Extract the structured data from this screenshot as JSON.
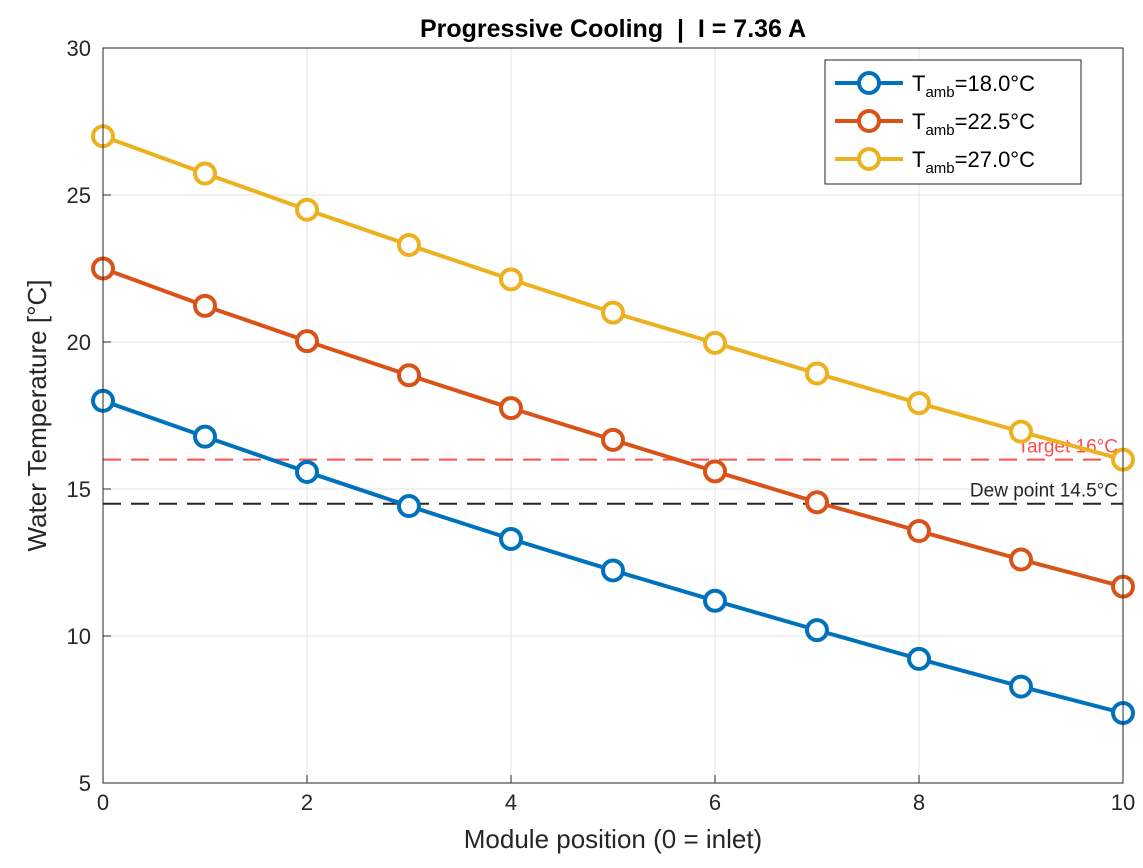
{
  "chart_data": {
    "type": "line",
    "title": "Progressive Cooling  |  I = 7.36 A",
    "xlabel": "Module position (0 = inlet)",
    "ylabel": "Water Temperature [°C]",
    "xlim": [
      0,
      10
    ],
    "ylim": [
      5,
      30
    ],
    "xticks": [
      "0",
      "2",
      "4",
      "6",
      "8",
      "10"
    ],
    "yticks": [
      "5",
      "10",
      "15",
      "20",
      "25",
      "30"
    ],
    "grid": true,
    "legend_position": "top-right",
    "x": [
      0,
      1,
      2,
      3,
      4,
      5,
      6,
      7,
      8,
      9,
      10
    ],
    "series": [
      {
        "legend_main": "T",
        "legend_sub": "amb",
        "legend_rest": "=18.0°C",
        "color": "#0072BD",
        "values": [
          18.0,
          16.78,
          15.58,
          14.42,
          13.3,
          12.23,
          11.2,
          10.2,
          9.22,
          8.28,
          7.38
        ]
      },
      {
        "legend_main": "T",
        "legend_sub": "amb",
        "legend_rest": "=22.5°C",
        "color": "#D95319",
        "values": [
          22.5,
          21.23,
          20.03,
          18.87,
          17.75,
          16.67,
          15.6,
          14.55,
          13.57,
          12.6,
          11.68
        ]
      },
      {
        "legend_main": "T",
        "legend_sub": "amb",
        "legend_rest": "=27.0°C",
        "color": "#EDB120",
        "values": [
          27.0,
          25.73,
          24.5,
          23.3,
          22.13,
          21.0,
          19.97,
          18.93,
          17.92,
          16.95,
          16.0
        ]
      }
    ],
    "reference_lines": [
      {
        "y": 16.0,
        "label": "Target 16°C",
        "color": "#FF4D4D"
      },
      {
        "y": 14.5,
        "label": "Dew point 14.5°C",
        "color": "#262626"
      }
    ]
  }
}
